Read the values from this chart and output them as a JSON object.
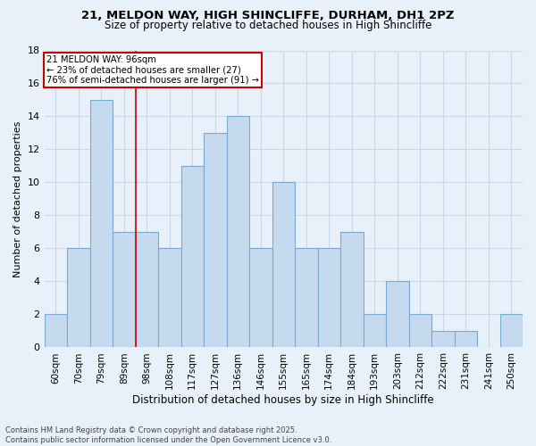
{
  "title1": "21, MELDON WAY, HIGH SHINCLIFFE, DURHAM, DH1 2PZ",
  "title2": "Size of property relative to detached houses in High Shincliffe",
  "xlabel": "Distribution of detached houses by size in High Shincliffe",
  "ylabel": "Number of detached properties",
  "bar_labels": [
    "60sqm",
    "70sqm",
    "79sqm",
    "89sqm",
    "98sqm",
    "108sqm",
    "117sqm",
    "127sqm",
    "136sqm",
    "146sqm",
    "155sqm",
    "165sqm",
    "174sqm",
    "184sqm",
    "193sqm",
    "203sqm",
    "212sqm",
    "222sqm",
    "231sqm",
    "241sqm",
    "250sqm"
  ],
  "bar_values": [
    2,
    6,
    15,
    7,
    7,
    6,
    11,
    13,
    14,
    6,
    10,
    6,
    6,
    7,
    2,
    4,
    2,
    1,
    1,
    0,
    2
  ],
  "bar_color": "#c5d9ef",
  "bar_edge_color": "#7aaad0",
  "reference_label": "21 MELDON WAY: 96sqm",
  "annotation_smaller": "← 23% of detached houses are smaller (27)",
  "annotation_larger": "76% of semi-detached houses are larger (91) →",
  "annotation_box_color": "#ffffff",
  "annotation_box_edge": "#cc0000",
  "ref_line_color": "#cc0000",
  "ref_line_x": 3.5,
  "ylim": [
    0,
    18
  ],
  "yticks": [
    0,
    2,
    4,
    6,
    8,
    10,
    12,
    14,
    16,
    18
  ],
  "footer1": "Contains HM Land Registry data © Crown copyright and database right 2025.",
  "footer2": "Contains public sector information licensed under the Open Government Licence v3.0.",
  "bg_color": "#e8f1fa",
  "grid_color": "#c8d8ec"
}
